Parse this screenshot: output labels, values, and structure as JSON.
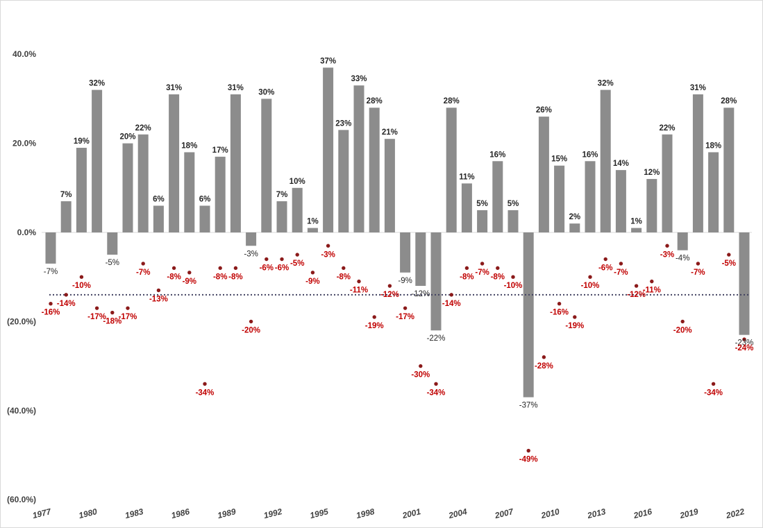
{
  "chart_data": {
    "type": "bar",
    "x": [
      1977,
      1978,
      1979,
      1980,
      1981,
      1982,
      1983,
      1984,
      1985,
      1986,
      1987,
      1988,
      1989,
      1990,
      1991,
      1992,
      1993,
      1994,
      1995,
      1996,
      1997,
      1998,
      1999,
      2000,
      2001,
      2002,
      2003,
      2004,
      2005,
      2006,
      2007,
      2008,
      2009,
      2010,
      2011,
      2012,
      2013,
      2014,
      2015,
      2016,
      2017,
      2018,
      2019,
      2020,
      2021,
      2022
    ],
    "x_tick_labels": [
      "1977",
      "1980",
      "1983",
      "1986",
      "1989",
      "1992",
      "1995",
      "1998",
      "2001",
      "2004",
      "2007",
      "2010",
      "2013",
      "2016",
      "2019",
      "2022"
    ],
    "series": [
      {
        "type": "bar",
        "color": "#8c8c8c",
        "values": [
          -7,
          7,
          19,
          32,
          -5,
          20,
          22,
          6,
          31,
          18,
          6,
          17,
          31,
          -3,
          30,
          7,
          10,
          1,
          37,
          23,
          33,
          28,
          21,
          -9,
          -12,
          -22,
          28,
          11,
          5,
          16,
          5,
          -37,
          26,
          15,
          2,
          16,
          32,
          14,
          1,
          12,
          22,
          -4,
          31,
          18,
          28,
          -23
        ],
        "labels": [
          "-7%",
          "7%",
          "19%",
          "32%",
          "-5%",
          "20%",
          "22%",
          "6%",
          "31%",
          "18%",
          "6%",
          "17%",
          "31%",
          "-3%",
          "30%",
          "7%",
          "10%",
          "1%",
          "37%",
          "23%",
          "33%",
          "28%",
          "21%",
          "-9%",
          "-12%",
          "-22%",
          "28%",
          "11%",
          "5%",
          "16%",
          "5%",
          "-37%",
          "26%",
          "15%",
          "2%",
          "16%",
          "32%",
          "14%",
          "1%",
          "12%",
          "22%",
          "-4%",
          "31%",
          "18%",
          "28%",
          "-23%"
        ]
      },
      {
        "type": "scatter",
        "color": "#8b1a1a",
        "label_color": "#c00000",
        "values": [
          -16,
          -14,
          -10,
          -17,
          -18,
          -17,
          -7,
          -13,
          -8,
          -9,
          -34,
          -8,
          -8,
          -20,
          -6,
          -6,
          -5,
          -9,
          -3,
          -8,
          -11,
          -19,
          -12,
          -17,
          -30,
          -34,
          -14,
          -8,
          -7,
          -8,
          -10,
          -49,
          -28,
          -16,
          -19,
          -10,
          -6,
          -7,
          -12,
          -11,
          -3,
          -20,
          -7,
          -34,
          -5,
          -24
        ],
        "labels": [
          "-16%",
          "-14%",
          "-10%",
          "-17%",
          "-18%",
          "-17%",
          "-7%",
          "-13%",
          "-8%",
          "-9%",
          "-34%",
          "-8%",
          "-8%",
          "-20%",
          "-6%",
          "-6%",
          "-5%",
          "-9%",
          "-3%",
          "-8%",
          "-11%",
          "-19%",
          "-12%",
          "-17%",
          "-30%",
          "-34%",
          "-14%",
          "-8%",
          "-7%",
          "-8%",
          "-10%",
          "-49%",
          "-28%",
          "-16%",
          "-19%",
          "-10%",
          "-6%",
          "-7%",
          "-12%",
          "-11%",
          "-3%",
          "-20%",
          "-7%",
          "-34%",
          "-5%",
          "-24%"
        ]
      }
    ],
    "average_line": {
      "value": -14,
      "style": "dotted",
      "color": "#404060"
    },
    "y_tick_labels": [
      "40.0%",
      "20.0%",
      "0.0%",
      "(20.0%)",
      "(40.0%)",
      "(60.0%)"
    ],
    "y_ticks": [
      40,
      20,
      0,
      -20,
      -40,
      -60
    ],
    "ylim": [
      -60,
      40
    ],
    "grid": false,
    "legend": "none"
  }
}
